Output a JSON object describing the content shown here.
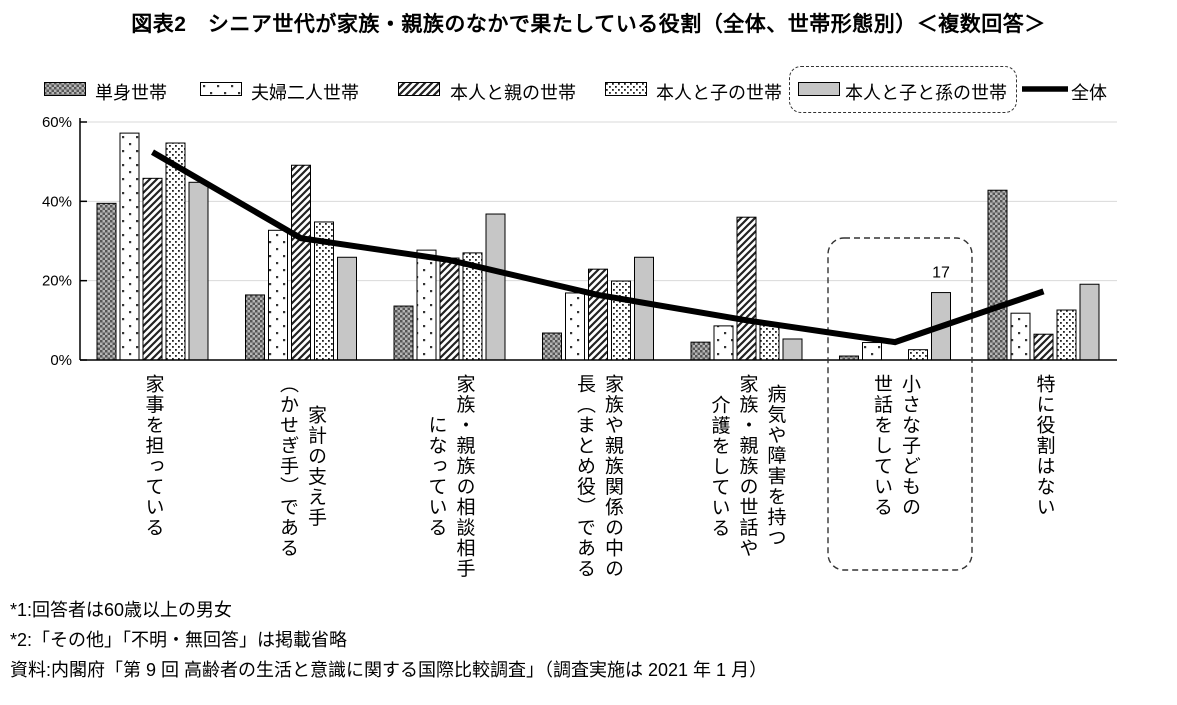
{
  "title": "図表2　シニア世代が家族・親族のなかで果たしている役割（全体、世帯形態別）＜複数回答＞",
  "legend": {
    "items": [
      {
        "label": "単身世帯",
        "pattern": "checkerboard-dark"
      },
      {
        "label": "夫婦二人世帯",
        "pattern": "sparse-dots"
      },
      {
        "label": "本人と親の世帯",
        "pattern": "diagonal-stripes"
      },
      {
        "label": "本人と子の世帯",
        "pattern": "dense-dots"
      },
      {
        "label": "本人と子と孫の世帯",
        "pattern": "solid-gray",
        "boxed": true
      },
      {
        "label": "全体",
        "pattern": "thick-line"
      }
    ]
  },
  "chart_data": {
    "type": "bar",
    "title": "図表2　シニア世代が家族・親族のなかで果たしている役割（全体、世帯形態別）＜複数回答＞",
    "y_axis": {
      "ticks": [
        "0%",
        "20%",
        "40%",
        "60%"
      ],
      "tick_values": [
        0,
        20,
        40,
        60
      ],
      "min": 0,
      "max": 60,
      "grid": true
    },
    "categories": [
      {
        "name": "家事を担っている",
        "lines": [
          "家事を担っている"
        ]
      },
      {
        "name": "家計の支え手（かせぎ手）である",
        "lines": [
          "家計の支え手",
          "（かせぎ手）である"
        ]
      },
      {
        "name": "家族・親族の相談相手になっている",
        "lines": [
          "家族・親族の相談相手",
          "になっている"
        ]
      },
      {
        "name": "家族や親族関係の中の長（まとめ役）である",
        "lines": [
          "家族や親族関係の中の",
          "長（まとめ役）である"
        ]
      },
      {
        "name": "病気や障害を持つ家族・親族の世話や介護をしている",
        "lines": [
          "病気や障害を持つ",
          "家族・親族の世話や",
          "介護をしている"
        ]
      },
      {
        "name": "小さな子どもの世話をしている",
        "lines": [
          "小さな子どもの",
          "世話をしている"
        ]
      },
      {
        "name": "特に役割はない",
        "lines": [
          "特に役割はない"
        ]
      }
    ],
    "series": [
      {
        "name": "単身世帯",
        "pattern": "checkerboard-dark",
        "values": [
          39.5,
          16.4,
          13.6,
          6.8,
          4.5,
          1.0,
          42.8
        ]
      },
      {
        "name": "夫婦二人世帯",
        "pattern": "sparse-dots",
        "values": [
          57.2,
          32.7,
          27.7,
          16.9,
          8.6,
          4.4,
          11.8
        ]
      },
      {
        "name": "本人と親の世帯",
        "pattern": "diagonal-stripes",
        "values": [
          45.8,
          49.1,
          25.7,
          22.9,
          36.0,
          0,
          6.5
        ]
      },
      {
        "name": "本人と子の世帯",
        "pattern": "dense-dots",
        "values": [
          54.7,
          34.8,
          27.0,
          19.9,
          8.8,
          2.6,
          12.6
        ]
      },
      {
        "name": "本人と子と孫の世帯",
        "pattern": "solid-gray",
        "values": [
          44.8,
          25.9,
          36.8,
          25.9,
          5.3,
          17.0,
          19.1
        ]
      }
    ],
    "line_series": {
      "name": "全体",
      "values": [
        52.4,
        30.7,
        25.2,
        16.4,
        10.0,
        4.5,
        17.3
      ]
    },
    "annotations": [
      {
        "text": "17",
        "category_index": 5,
        "series_index": 4
      }
    ],
    "highlight_box": {
      "category_index": 5
    },
    "colors": {
      "solid_gray": "#c6c6c6",
      "grid": "#d9d9d9",
      "axis": "#000000",
      "line": "#000000"
    }
  },
  "footnotes": [
    "*1:回答者は60歳以上の男女",
    "*2:「その他」「不明・無回答」は掲載省略",
    "資料:内閣府「第 9 回 高齢者の生活と意識に関する国際比較調査」（調査実施は 2021 年 1 月）"
  ]
}
